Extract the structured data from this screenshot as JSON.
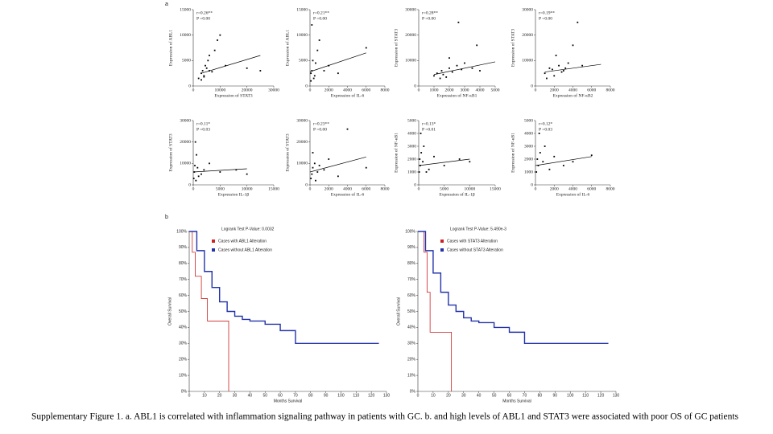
{
  "panel_labels": [
    "a",
    "b"
  ],
  "caption": "Supplementary Figure 1. a. ABL1 is correlated with inflammation signaling pathway in patients with GC. b. and high levels of ABL1 and STAT3 were associated with poor OS of GC patients",
  "chart_data": [
    {
      "type": "scatter",
      "annotations": [
        "r=0.26**",
        "P =0.00"
      ],
      "xlabel": "Expression of STAT3",
      "ylabel": "Expression of ABL1",
      "color": "#000000",
      "x": [
        2000,
        3000,
        3500,
        4000,
        4500,
        5000,
        5500,
        6000,
        7000,
        8000,
        9000,
        10000,
        3000,
        4000,
        6000,
        12000,
        20000,
        25000
      ],
      "values": [
        1500,
        2500,
        3000,
        2000,
        4000,
        3500,
        5000,
        6000,
        2800,
        7000,
        9000,
        10000,
        1200,
        1800,
        3000,
        4000,
        3500,
        3000
      ],
      "trendline": {
        "x": [
          3000,
          25000
        ],
        "values": [
          2500,
          6000
        ]
      },
      "xlim": [
        0,
        30000
      ],
      "xticks": [
        0,
        10000,
        20000,
        30000
      ],
      "ylim": [
        0,
        15000
      ],
      "yticks": [
        0,
        5000,
        10000,
        15000
      ]
    },
    {
      "type": "scatter",
      "annotations": [
        "r=0.21**",
        "P =0.00"
      ],
      "xlabel": "Expression of IL-6",
      "ylabel": "Expression of ABL1",
      "color": "#000000",
      "x": [
        100,
        200,
        300,
        500,
        800,
        1000,
        1500,
        200,
        400,
        2000,
        3000,
        6000,
        100,
        600
      ],
      "values": [
        1000,
        3000,
        5000,
        2000,
        7000,
        9000,
        3000,
        12000,
        1500,
        4000,
        2500,
        7500,
        2500,
        4500
      ],
      "trendline": {
        "x": [
          0,
          6000
        ],
        "values": [
          2800,
          6500
        ]
      },
      "xlim": [
        0,
        8000
      ],
      "xticks": [
        0,
        2000,
        4000,
        6000,
        8000
      ],
      "ylim": [
        0,
        15000
      ],
      "yticks": [
        0,
        5000,
        10000,
        15000
      ]
    },
    {
      "type": "scatter",
      "annotations": [
        "r=0.28**",
        "P =0.00"
      ],
      "xlabel": "Expression of NF-κB1",
      "ylabel": "Expression of STAT3",
      "color": "#000000",
      "x": [
        1000,
        1200,
        1500,
        1800,
        2000,
        2200,
        2500,
        2800,
        3000,
        3500,
        4000,
        1400,
        1600,
        2600,
        3800,
        2000
      ],
      "values": [
        4000,
        5000,
        6000,
        3500,
        7000,
        5500,
        8000,
        6500,
        9000,
        7000,
        6000,
        3000,
        4500,
        25000,
        16000,
        11000
      ],
      "trendline": {
        "x": [
          1000,
          5000
        ],
        "values": [
          4500,
          9500
        ]
      },
      "xlim": [
        0,
        5000
      ],
      "xticks": [
        0,
        1000,
        2000,
        3000,
        4000,
        5000
      ],
      "ylim": [
        0,
        30000
      ],
      "yticks": [
        0,
        10000,
        20000,
        30000
      ]
    },
    {
      "type": "scatter",
      "annotations": [
        "r=0.19**",
        "P =0.00"
      ],
      "xlabel": "Expression of NF-κB2",
      "ylabel": "Expression of STAT3",
      "color": "#000000",
      "x": [
        1000,
        1500,
        2000,
        2500,
        3000,
        3500,
        4000,
        1200,
        1800,
        2200,
        2800,
        4500,
        5000,
        3200
      ],
      "values": [
        5000,
        7000,
        4000,
        8000,
        6000,
        9000,
        16000,
        3000,
        6500,
        12000,
        5500,
        25000,
        8000,
        7000
      ],
      "trendline": {
        "x": [
          1000,
          7000
        ],
        "values": [
          5500,
          8500
        ]
      },
      "xlim": [
        0,
        8000
      ],
      "xticks": [
        0,
        2000,
        4000,
        6000,
        8000
      ],
      "ylim": [
        0,
        30000
      ],
      "yticks": [
        0,
        10000,
        20000,
        30000
      ]
    },
    {
      "type": "scatter",
      "annotations": [
        "r=0.11*",
        "P =0.03"
      ],
      "xlabel": "Expression IL-1β",
      "ylabel": "Expression of STAT3",
      "color": "#000000",
      "x": [
        100,
        200,
        300,
        500,
        800,
        1000,
        1500,
        2000,
        3000,
        5000,
        8000,
        10000,
        400,
        600
      ],
      "values": [
        3000,
        6000,
        9000,
        2000,
        8000,
        4000,
        5000,
        7000,
        10000,
        6000,
        7000,
        5000,
        20000,
        14000
      ],
      "trendline": {
        "x": [
          0,
          10000
        ],
        "values": [
          6000,
          7500
        ]
      },
      "xlim": [
        0,
        15000
      ],
      "xticks": [
        0,
        5000,
        10000,
        15000
      ],
      "ylim": [
        0,
        30000
      ],
      "yticks": [
        0,
        10000,
        20000,
        30000
      ]
    },
    {
      "type": "scatter",
      "annotations": [
        "r=0.23**",
        "P =0.00"
      ],
      "xlabel": "Expression of IL-6",
      "ylabel": "Expression of STAT3",
      "color": "#000000",
      "x": [
        100,
        200,
        300,
        500,
        800,
        1000,
        1500,
        2000,
        3000,
        4000,
        6000,
        300,
        600
      ],
      "values": [
        3000,
        5000,
        8000,
        10000,
        6000,
        9000,
        7000,
        12000,
        4000,
        26000,
        8000,
        15000,
        2000
      ],
      "trendline": {
        "x": [
          0,
          6000
        ],
        "values": [
          6000,
          13000
        ]
      },
      "xlim": [
        0,
        8000
      ],
      "xticks": [
        0,
        2000,
        4000,
        6000,
        8000
      ],
      "ylim": [
        0,
        30000
      ],
      "yticks": [
        0,
        10000,
        20000,
        30000
      ]
    },
    {
      "type": "scatter",
      "annotations": [
        "r=0.13*",
        "P =0.01"
      ],
      "xlabel": "Expression of IL-1β",
      "ylabel": "Expression of NF-κB1",
      "color": "#000000",
      "x": [
        100,
        200,
        300,
        500,
        800,
        1000,
        2000,
        3000,
        5000,
        8000,
        10000,
        400,
        1500
      ],
      "values": [
        1000,
        2000,
        1500,
        2500,
        1800,
        3000,
        1200,
        2200,
        1500,
        2000,
        1800,
        4000,
        1000
      ],
      "trendline": {
        "x": [
          0,
          10000
        ],
        "values": [
          1500,
          2000
        ]
      },
      "xlim": [
        0,
        15000
      ],
      "xticks": [
        0,
        5000,
        10000,
        15000
      ],
      "ylim": [
        0,
        5000
      ],
      "yticks": [
        0,
        1000,
        2000,
        3000,
        4000,
        5000
      ]
    },
    {
      "type": "scatter",
      "annotations": [
        "r=0.12*",
        "P =0.03"
      ],
      "xlabel": "Expression of IL-6",
      "ylabel": "Expression of NF-κB1",
      "color": "#000000",
      "x": [
        100,
        200,
        300,
        500,
        800,
        1000,
        1500,
        2000,
        3000,
        4000,
        6000,
        400
      ],
      "values": [
        1000,
        2000,
        1500,
        2500,
        1800,
        3000,
        1200,
        2200,
        1500,
        1800,
        2300,
        4000
      ],
      "trendline": {
        "x": [
          0,
          6000
        ],
        "values": [
          1500,
          2200
        ]
      },
      "xlim": [
        0,
        8000
      ],
      "xticks": [
        0,
        2000,
        4000,
        6000,
        8000
      ],
      "ylim": [
        0,
        5000
      ],
      "yticks": [
        0,
        1000,
        2000,
        3000,
        4000,
        5000
      ]
    },
    {
      "type": "line",
      "step": true,
      "title": "Logrank Test P-Value: 0.0032",
      "xlabel": "Months Survival",
      "ylabel": "Overall Survival",
      "series": [
        {
          "name": "Cases with ABL1 Alteration",
          "color": "#cc2222",
          "x": [
            0,
            2,
            4,
            8,
            12,
            24,
            26
          ],
          "values": [
            100,
            87,
            72,
            58,
            44,
            44,
            0
          ]
        },
        {
          "name": "Cases without ABL1 Alteration",
          "color": "#2233aa",
          "x": [
            0,
            5,
            10,
            15,
            20,
            25,
            30,
            35,
            40,
            50,
            60,
            70,
            75,
            100,
            125
          ],
          "values": [
            100,
            88,
            75,
            65,
            56,
            50,
            47,
            45,
            44,
            42,
            38,
            30,
            30,
            30,
            30
          ]
        }
      ],
      "xlim": [
        0,
        130
      ],
      "xticks": [
        0,
        10,
        20,
        30,
        40,
        50,
        60,
        70,
        80,
        90,
        100,
        110,
        120,
        130
      ],
      "ylim": [
        0,
        100
      ],
      "yticks": [
        {
          "value": 0,
          "label": "0%"
        },
        {
          "value": 10,
          "label": "10%"
        },
        {
          "value": 20,
          "label": "20%"
        },
        {
          "value": 30,
          "label": "30%"
        },
        {
          "value": 40,
          "label": "40%"
        },
        {
          "value": 50,
          "label": "50%"
        },
        {
          "value": 60,
          "label": "60%"
        },
        {
          "value": 70,
          "label": "70%"
        },
        {
          "value": 80,
          "label": "80%"
        },
        {
          "value": 90,
          "label": "90%"
        },
        {
          "value": 100,
          "label": "100%"
        }
      ]
    },
    {
      "type": "line",
      "step": true,
      "title": "Logrank Test P-Value: 5.490e-3",
      "xlabel": "Months Survival",
      "ylabel": "Overall Survival",
      "series": [
        {
          "name": "Cases with STAT3 Alteration",
          "color": "#cc2222",
          "x": [
            0,
            4,
            6,
            8,
            10,
            20,
            22
          ],
          "values": [
            100,
            87,
            62,
            37,
            37,
            37,
            0
          ]
        },
        {
          "name": "Cases without STAT3 Alteration",
          "color": "#2233aa",
          "x": [
            0,
            5,
            10,
            15,
            20,
            25,
            30,
            35,
            40,
            50,
            60,
            70,
            75,
            100,
            125
          ],
          "values": [
            100,
            88,
            74,
            62,
            54,
            50,
            46,
            44,
            43,
            40,
            37,
            30,
            30,
            30,
            30
          ]
        }
      ],
      "xlim": [
        0,
        130
      ],
      "xticks": [
        0,
        10,
        20,
        30,
        40,
        50,
        60,
        70,
        80,
        90,
        100,
        110,
        120,
        130
      ],
      "ylim": [
        0,
        100
      ],
      "yticks": [
        {
          "value": 0,
          "label": "0%"
        },
        {
          "value": 10,
          "label": "10%"
        },
        {
          "value": 20,
          "label": "20%"
        },
        {
          "value": 30,
          "label": "30%"
        },
        {
          "value": 40,
          "label": "40%"
        },
        {
          "value": 50,
          "label": "50%"
        },
        {
          "value": 60,
          "label": "60%"
        },
        {
          "value": 70,
          "label": "70%"
        },
        {
          "value": 80,
          "label": "80%"
        },
        {
          "value": 90,
          "label": "90%"
        },
        {
          "value": 100,
          "label": "100%"
        }
      ]
    }
  ]
}
